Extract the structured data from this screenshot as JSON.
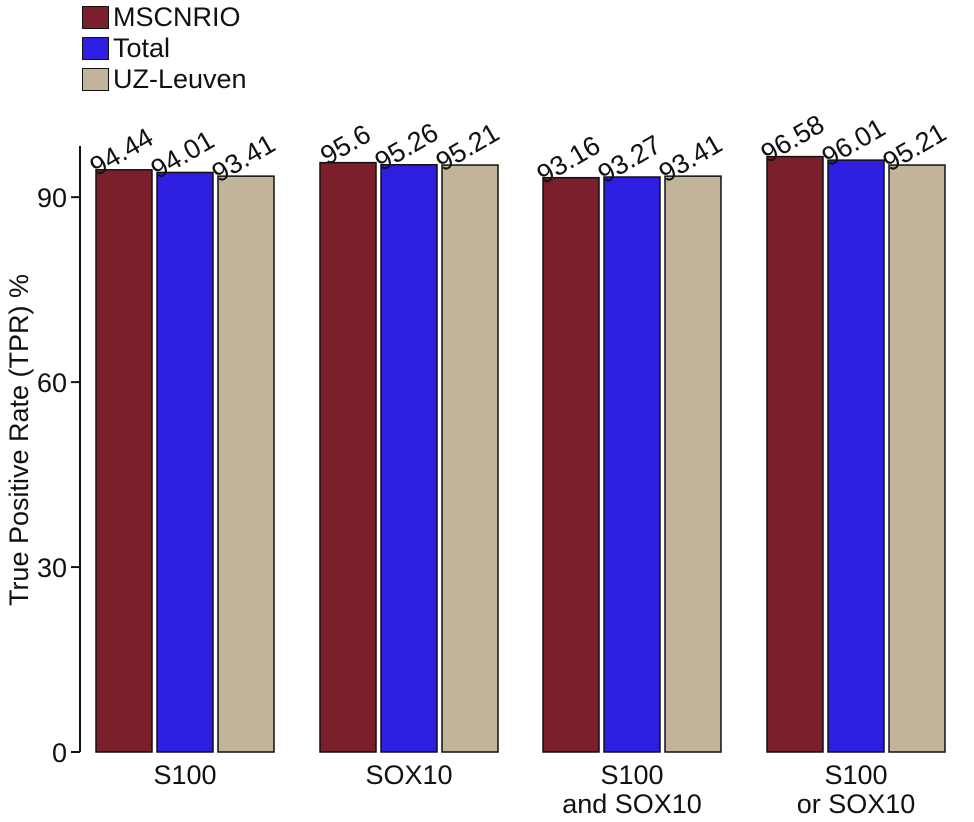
{
  "chart_data": {
    "type": "bar",
    "categories": [
      [
        "S100"
      ],
      [
        "SOX10"
      ],
      [
        "S100",
        "and SOX10"
      ],
      [
        "S100",
        "or SOX10"
      ]
    ],
    "series": [
      {
        "name": "MSCNRIO",
        "color": "#7a1f2b",
        "values": [
          94.44,
          95.6,
          93.16,
          96.58
        ]
      },
      {
        "name": "Total",
        "color": "#2e1fe0",
        "values": [
          94.01,
          95.26,
          93.27,
          96.01
        ]
      },
      {
        "name": "UZ-Leuven",
        "color": "#c2b49a",
        "values": [
          93.41,
          95.21,
          93.41,
          95.21
        ]
      }
    ],
    "value_labels": [
      [
        "94.44",
        "95.6",
        "93.16",
        "96.58"
      ],
      [
        "94.01",
        "95.26",
        "93.27",
        "96.01"
      ],
      [
        "93.41",
        "95.21",
        "93.41",
        "95.21"
      ]
    ],
    "ylabel": "True Positive Rate (TPR) %",
    "xlabel": "",
    "ylim": [
      0,
      100
    ],
    "yticks": [
      0,
      30,
      60,
      90
    ],
    "legend_position": "top-left",
    "grid": false
  }
}
